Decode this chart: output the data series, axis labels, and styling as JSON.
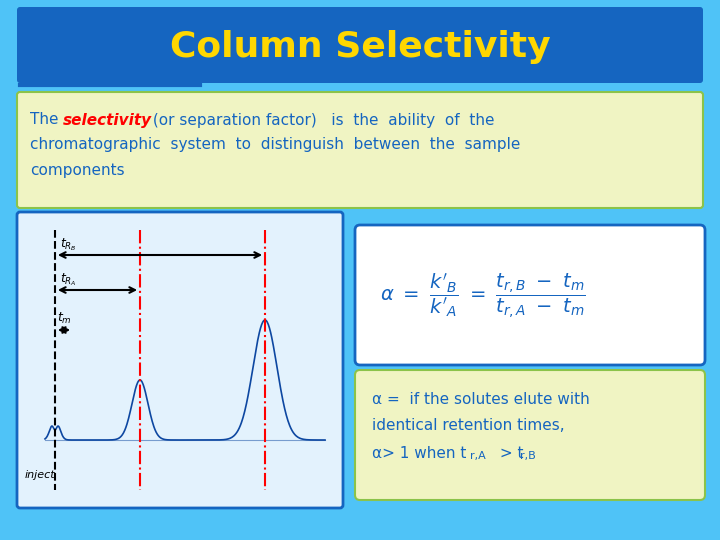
{
  "title": "Column Selectivity",
  "title_color": "#FFD700",
  "title_bg_color": "#1565C0",
  "slide_bg_color": "#4FC3F7",
  "text_box_bg": "#F0F4C3",
  "text_box_border": "#8BC34A",
  "text_line1_normal": "The ",
  "text_line1_bold": "selectivity",
  "text_line1_rest": " (or separation factor)   is  the  ability  of  the",
  "text_line2": "chromatographic  system  to  distinguish  between  the  sample",
  "text_line3": "components",
  "alpha_text1": "α =  if the solutes elute with",
  "alpha_text2": "identical retention times,",
  "alpha_text3": "α> 1 when t ",
  "alpha_sub1": "r,A",
  "alpha_text4": " > t ",
  "alpha_sub2": "r,B",
  "formula_box_bg": "#FFFFFF",
  "formula_box_border": "#1565C0",
  "bottom_box_bg": "#F0F4C3",
  "bottom_box_border": "#8BC34A",
  "chromo_box_bg": "#E3F2FD",
  "chromo_box_border": "#1565C0"
}
